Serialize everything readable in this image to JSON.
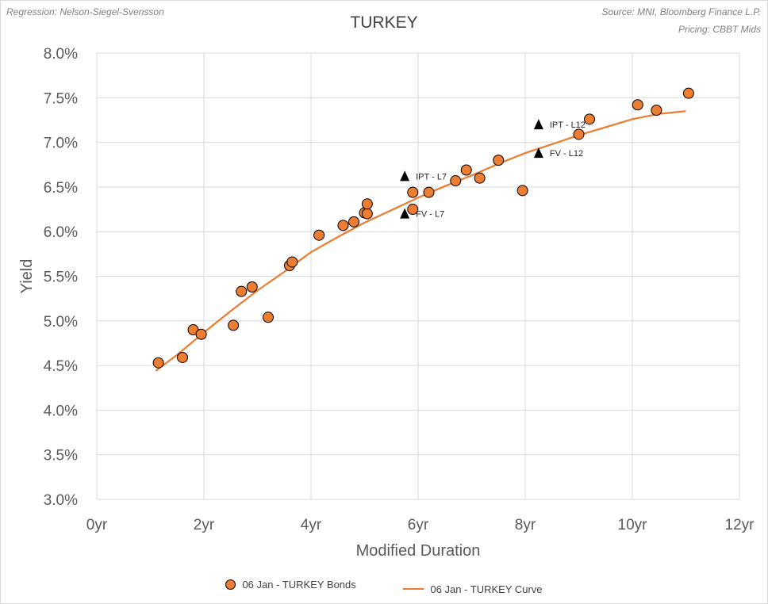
{
  "header": {
    "regression_note": "Regression: Nelson-Siegel-Svensson",
    "source_note": "Source: MNI, Bloomberg Finance L.P.",
    "pricing_note": "Pricing: CBBT Mids"
  },
  "chart_data": {
    "type": "scatter",
    "title": "TURKEY",
    "xlabel": "Modified Duration",
    "ylabel": "Yield",
    "xlim": [
      0,
      12
    ],
    "ylim": [
      3.0,
      8.0
    ],
    "x_ticks": [
      0,
      2,
      4,
      6,
      8,
      10,
      12
    ],
    "x_tick_labels": [
      "0yr",
      "2yr",
      "4yr",
      "6yr",
      "8yr",
      "10yr",
      "12yr"
    ],
    "y_ticks": [
      3.0,
      3.5,
      4.0,
      4.5,
      5.0,
      5.5,
      6.0,
      6.5,
      7.0,
      7.5,
      8.0
    ],
    "y_tick_labels": [
      "3.0%",
      "3.5%",
      "4.0%",
      "4.5%",
      "5.0%",
      "5.5%",
      "6.0%",
      "6.5%",
      "7.0%",
      "7.5%",
      "8.0%"
    ],
    "grid": true,
    "legend_position": "bottom",
    "colors": {
      "bonds": "#ed7d31",
      "curve": "#ed7d31",
      "markers": "#000000"
    },
    "series": [
      {
        "name": "06 Jan - TURKEY Bonds",
        "type": "scatter",
        "x": [
          1.15,
          1.6,
          1.8,
          1.95,
          2.55,
          2.7,
          2.9,
          3.2,
          3.6,
          3.65,
          4.15,
          4.6,
          4.8,
          5.0,
          5.05,
          5.05,
          5.9,
          5.9,
          6.2,
          6.7,
          6.9,
          7.15,
          7.5,
          7.95,
          9.0,
          9.2,
          10.1,
          10.45,
          11.05
        ],
        "y": [
          4.53,
          4.59,
          4.9,
          4.85,
          4.95,
          5.33,
          5.38,
          5.04,
          5.62,
          5.66,
          5.96,
          6.07,
          6.11,
          6.21,
          6.2,
          6.31,
          6.25,
          6.44,
          6.44,
          6.57,
          6.69,
          6.6,
          6.8,
          6.46,
          7.09,
          7.26,
          7.42,
          7.36,
          7.55
        ]
      },
      {
        "name": "06 Jan - TURKEY Curve",
        "type": "line",
        "x": [
          1.1,
          1.5,
          2.0,
          2.5,
          3.0,
          3.5,
          4.0,
          4.5,
          5.0,
          5.5,
          6.0,
          6.5,
          7.0,
          7.5,
          8.0,
          8.5,
          9.0,
          9.5,
          10.0,
          10.5,
          11.0
        ],
        "y": [
          4.44,
          4.62,
          4.87,
          5.11,
          5.34,
          5.55,
          5.77,
          5.94,
          6.1,
          6.24,
          6.38,
          6.51,
          6.63,
          6.76,
          6.88,
          6.98,
          7.08,
          7.17,
          7.26,
          7.32,
          7.35
        ]
      }
    ],
    "markers": [
      {
        "label": "IPT - L7",
        "x": 5.75,
        "y": 6.62
      },
      {
        "label": "FV - L7",
        "x": 5.75,
        "y": 6.2
      },
      {
        "label": "IPT - L12",
        "x": 8.25,
        "y": 7.2
      },
      {
        "label": "FV - L12",
        "x": 8.25,
        "y": 6.88
      }
    ]
  }
}
